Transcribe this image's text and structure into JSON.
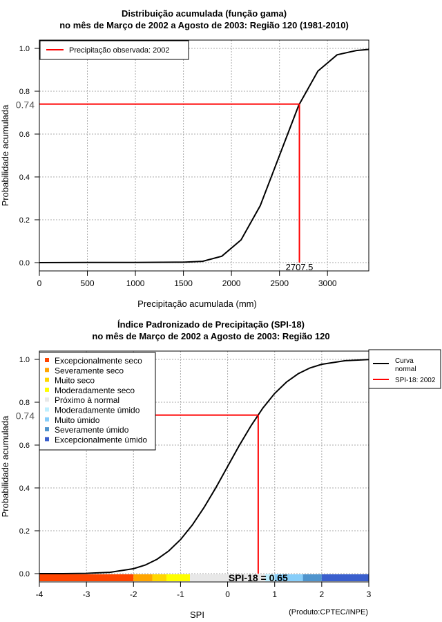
{
  "chart_data": [
    {
      "type": "line",
      "title": "Distribuição acumulada (função gama)",
      "subtitle": "no mês de Março de 2002 a Agosto de 2003: Região 120 (1981-2010)",
      "xlabel": "Precipitação acumulada (mm)",
      "ylabel": "Probabilidade acumulada",
      "xlim": [
        0,
        3430
      ],
      "ylim": [
        0,
        1
      ],
      "xticks": [
        "0",
        "500",
        "1000",
        "1500",
        "2000",
        "2500",
        "3000"
      ],
      "xtick_values": [
        0,
        500,
        1000,
        1500,
        2000,
        2500,
        3000
      ],
      "yticks": [
        "0.0",
        "0.2",
        "0.4",
        "0.6",
        "0.8",
        "1.0"
      ],
      "ytick_values": [
        0,
        0.2,
        0.4,
        0.6,
        0.8,
        1.0
      ],
      "grid": true,
      "legend_position": "top-left",
      "legend": [
        "Precipitação observada: 2002"
      ],
      "series": [
        {
          "name": "gamma-cdf",
          "color": "#000000",
          "x": [
            0,
            500,
            1000,
            1500,
            1700,
            1900,
            2100,
            2300,
            2500,
            2700,
            2900,
            3100,
            3300,
            3430
          ],
          "y": [
            0,
            0.001,
            0.001,
            0.002,
            0.006,
            0.03,
            0.106,
            0.266,
            0.5,
            0.734,
            0.894,
            0.97,
            0.99,
            0.995
          ]
        }
      ],
      "observed": {
        "x": 2707.5,
        "y": 0.74,
        "x_label": "2707.5",
        "y_label": "0.74",
        "color": "#FF0000"
      }
    },
    {
      "type": "line",
      "title": "Índice Padronizado de Precipitação (SPI-18)",
      "subtitle": "no mês de Março de 2002 a Agosto de 2003: Região 120",
      "xlabel": "SPI",
      "ylabel": "Probabilidade acumulada",
      "xlim": [
        -4,
        3
      ],
      "ylim": [
        0,
        1
      ],
      "xticks": [
        "-4",
        "-3",
        "-2",
        "-1",
        "0",
        "1",
        "2",
        "3"
      ],
      "xtick_values": [
        -4,
        -3,
        -2,
        -1,
        0,
        1,
        2,
        3
      ],
      "yticks": [
        "0.0",
        "0.2",
        "0.4",
        "0.6",
        "0.8",
        "1.0"
      ],
      "ytick_values": [
        0,
        0.2,
        0.4,
        0.6,
        0.8,
        1.0
      ],
      "grid": true,
      "legend_position": "top-right",
      "legend": [
        "Curva normal",
        "SPI-18: 2002"
      ],
      "legend_curve_line1": "Curva",
      "legend_curve_line2": "normal",
      "series": [
        {
          "name": "normal-cdf",
          "color": "#000000",
          "x": [
            -4,
            -3.5,
            -3,
            -2.5,
            -2,
            -1.75,
            -1.5,
            -1.25,
            -1,
            -0.75,
            -0.5,
            -0.25,
            0,
            0.25,
            0.5,
            0.75,
            1,
            1.25,
            1.5,
            1.75,
            2,
            2.5,
            3
          ],
          "y": [
            0,
            0.0002,
            0.0013,
            0.006,
            0.023,
            0.04,
            0.067,
            0.106,
            0.159,
            0.227,
            0.309,
            0.401,
            0.5,
            0.599,
            0.691,
            0.773,
            0.841,
            0.894,
            0.933,
            0.96,
            0.977,
            0.994,
            0.999
          ]
        }
      ],
      "observed": {
        "x": 0.65,
        "y": 0.74,
        "y_label": "0.74",
        "value_label": "SPI-18 = 0.65",
        "color": "#FF0000"
      },
      "classes": [
        {
          "label": "Excepcionalmente seco",
          "color": "#FF4500",
          "from": -4,
          "to": -2
        },
        {
          "label": "Severamente seco",
          "color": "#FFA500",
          "from": -2,
          "to": -1.6
        },
        {
          "label": "Muito seco",
          "color": "#FFD700",
          "from": -1.6,
          "to": -1.3
        },
        {
          "label": "Moderadamente seco",
          "color": "#FFFF00",
          "from": -1.3,
          "to": -0.8
        },
        {
          "label": "Próximo à normal",
          "color": "#E8E8E8",
          "from": -0.8,
          "to": 0.8
        },
        {
          "label": "Moderadamente úmido",
          "color": "#BFEFFF",
          "from": 0.8,
          "to": 1.0
        },
        {
          "label": "Muito úmido",
          "color": "#87CEFA",
          "from": 1.0,
          "to": 1.6
        },
        {
          "label": "Severamente úmido",
          "color": "#4F94CD",
          "from": 1.6,
          "to": 2.0
        },
        {
          "label": "Excepcionalmente úmido",
          "color": "#3A5FCD",
          "from": 2.0,
          "to": 3
        }
      ]
    }
  ],
  "credit": "(Produto:CPTEC/INPE)"
}
